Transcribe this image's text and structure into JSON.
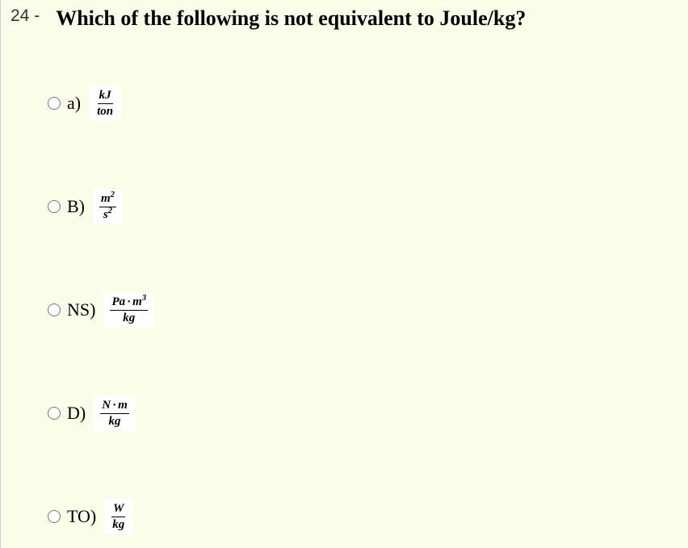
{
  "question": {
    "number": "24 -",
    "text": "Which of the following is not equivalent to Joule/kg?"
  },
  "options": [
    {
      "label": "a)",
      "numerator_html": "kJ",
      "denominator_html": "ton"
    },
    {
      "label": "B)",
      "numerator_html": "m<sup>2</sup>",
      "denominator_html": "s<sup>2</sup>"
    },
    {
      "label": "NS)",
      "numerator_html": "Pa<span class=\"dot\">·</span>m<sup>3</sup>",
      "denominator_html": "kg"
    },
    {
      "label": "D)",
      "numerator_html": "N<span class=\"dot\">·</span>m",
      "denominator_html": "kg"
    },
    {
      "label": "TO)",
      "numerator_html": "W",
      "denominator_html": "kg"
    }
  ],
  "style": {
    "background_color": "#fafde8",
    "fraction_box_bg": "#ffffff",
    "question_fontsize": 26,
    "number_fontsize": 21,
    "option_label_fontsize": 22,
    "fraction_fontsize": 15
  }
}
